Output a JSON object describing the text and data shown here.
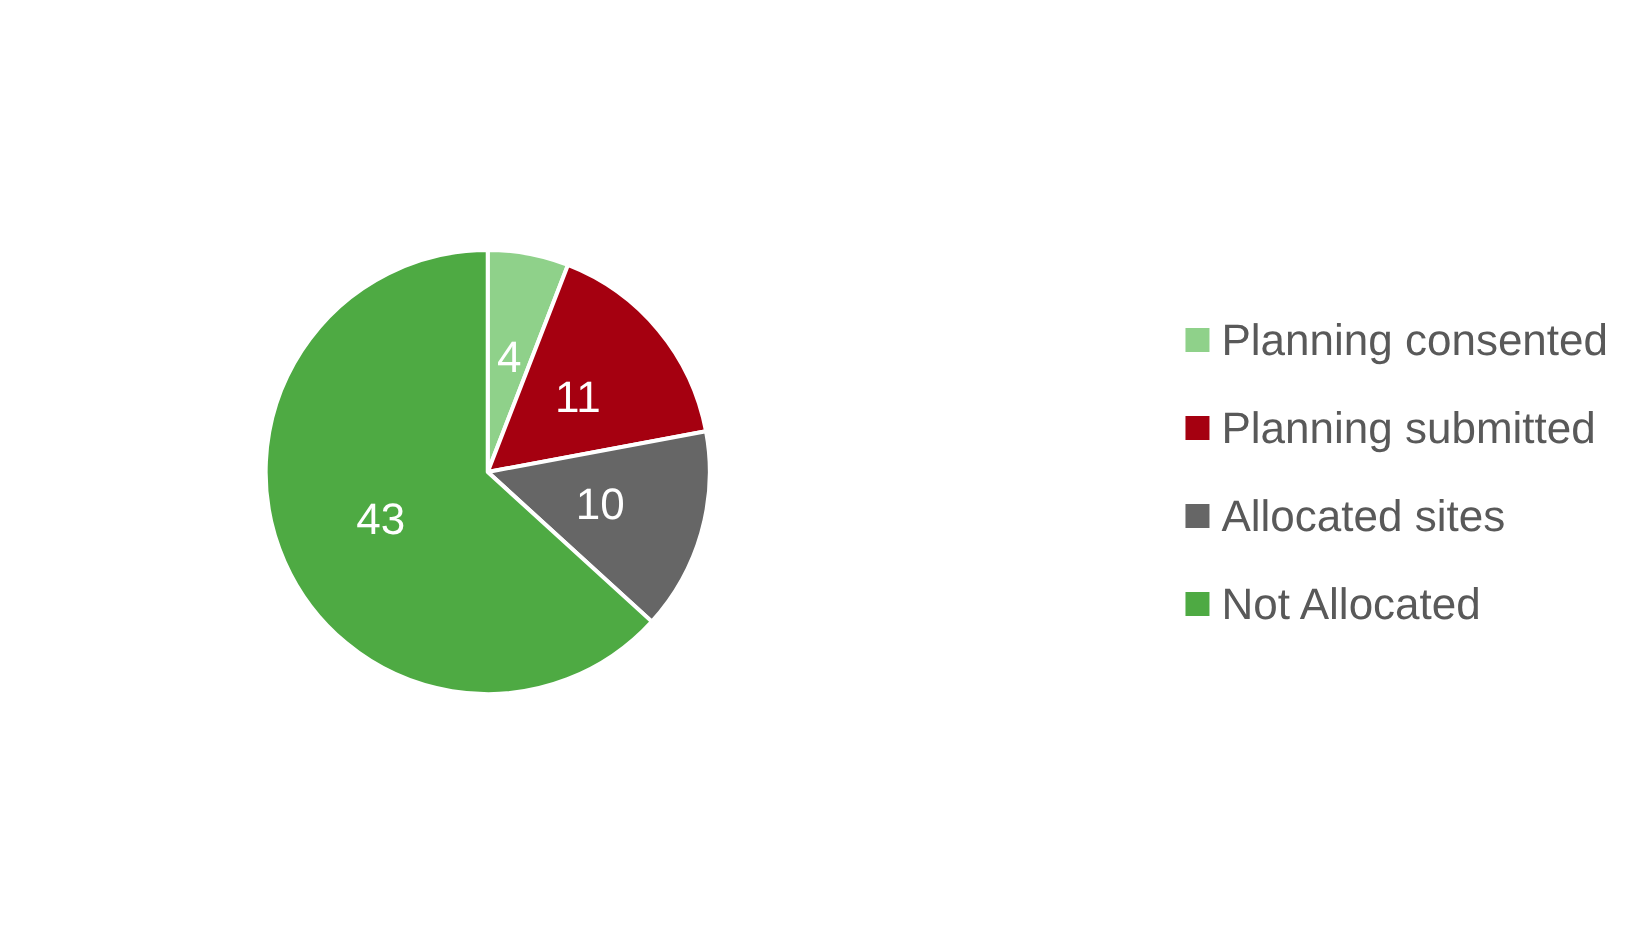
{
  "chart_data": {
    "type": "pie",
    "categories": [
      "Planning consented",
      "Planning submitted",
      "Allocated sites",
      "Not Allocated"
    ],
    "values": [
      4,
      11,
      10,
      43
    ],
    "colors": [
      "#8fd18a",
      "#a50010",
      "#666666",
      "#4eaa43"
    ],
    "data_labels": true,
    "legend": "right"
  }
}
